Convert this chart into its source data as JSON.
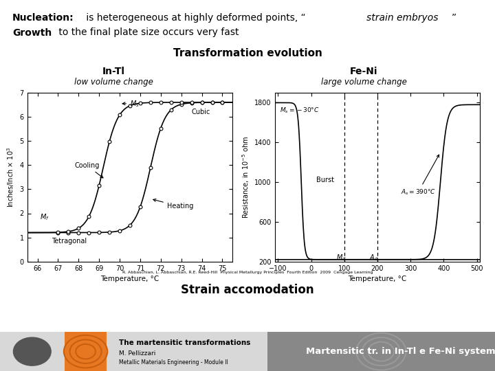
{
  "bg_color": "#ffffff",
  "citation": "R. Abbaschian, L. Abbaschian, R.E. Reed-Hill  Physical Metallurgy Principles  Fourth Edition  2009  Cengage Learning",
  "strain_accomodation": "Strain accomodation",
  "footer_left_title": "The martensitic transformations",
  "footer_left_sub1": "M. Pellizzari",
  "footer_left_sub2": "Metallic Materials Engineering - Module II",
  "footer_right": "Martensitic tr. in In-Tl e Fe-Ni systems",
  "footer_bg_left": "#e87722",
  "footer_bg_right": "#888888",
  "footer_icon_color": "#c86010"
}
